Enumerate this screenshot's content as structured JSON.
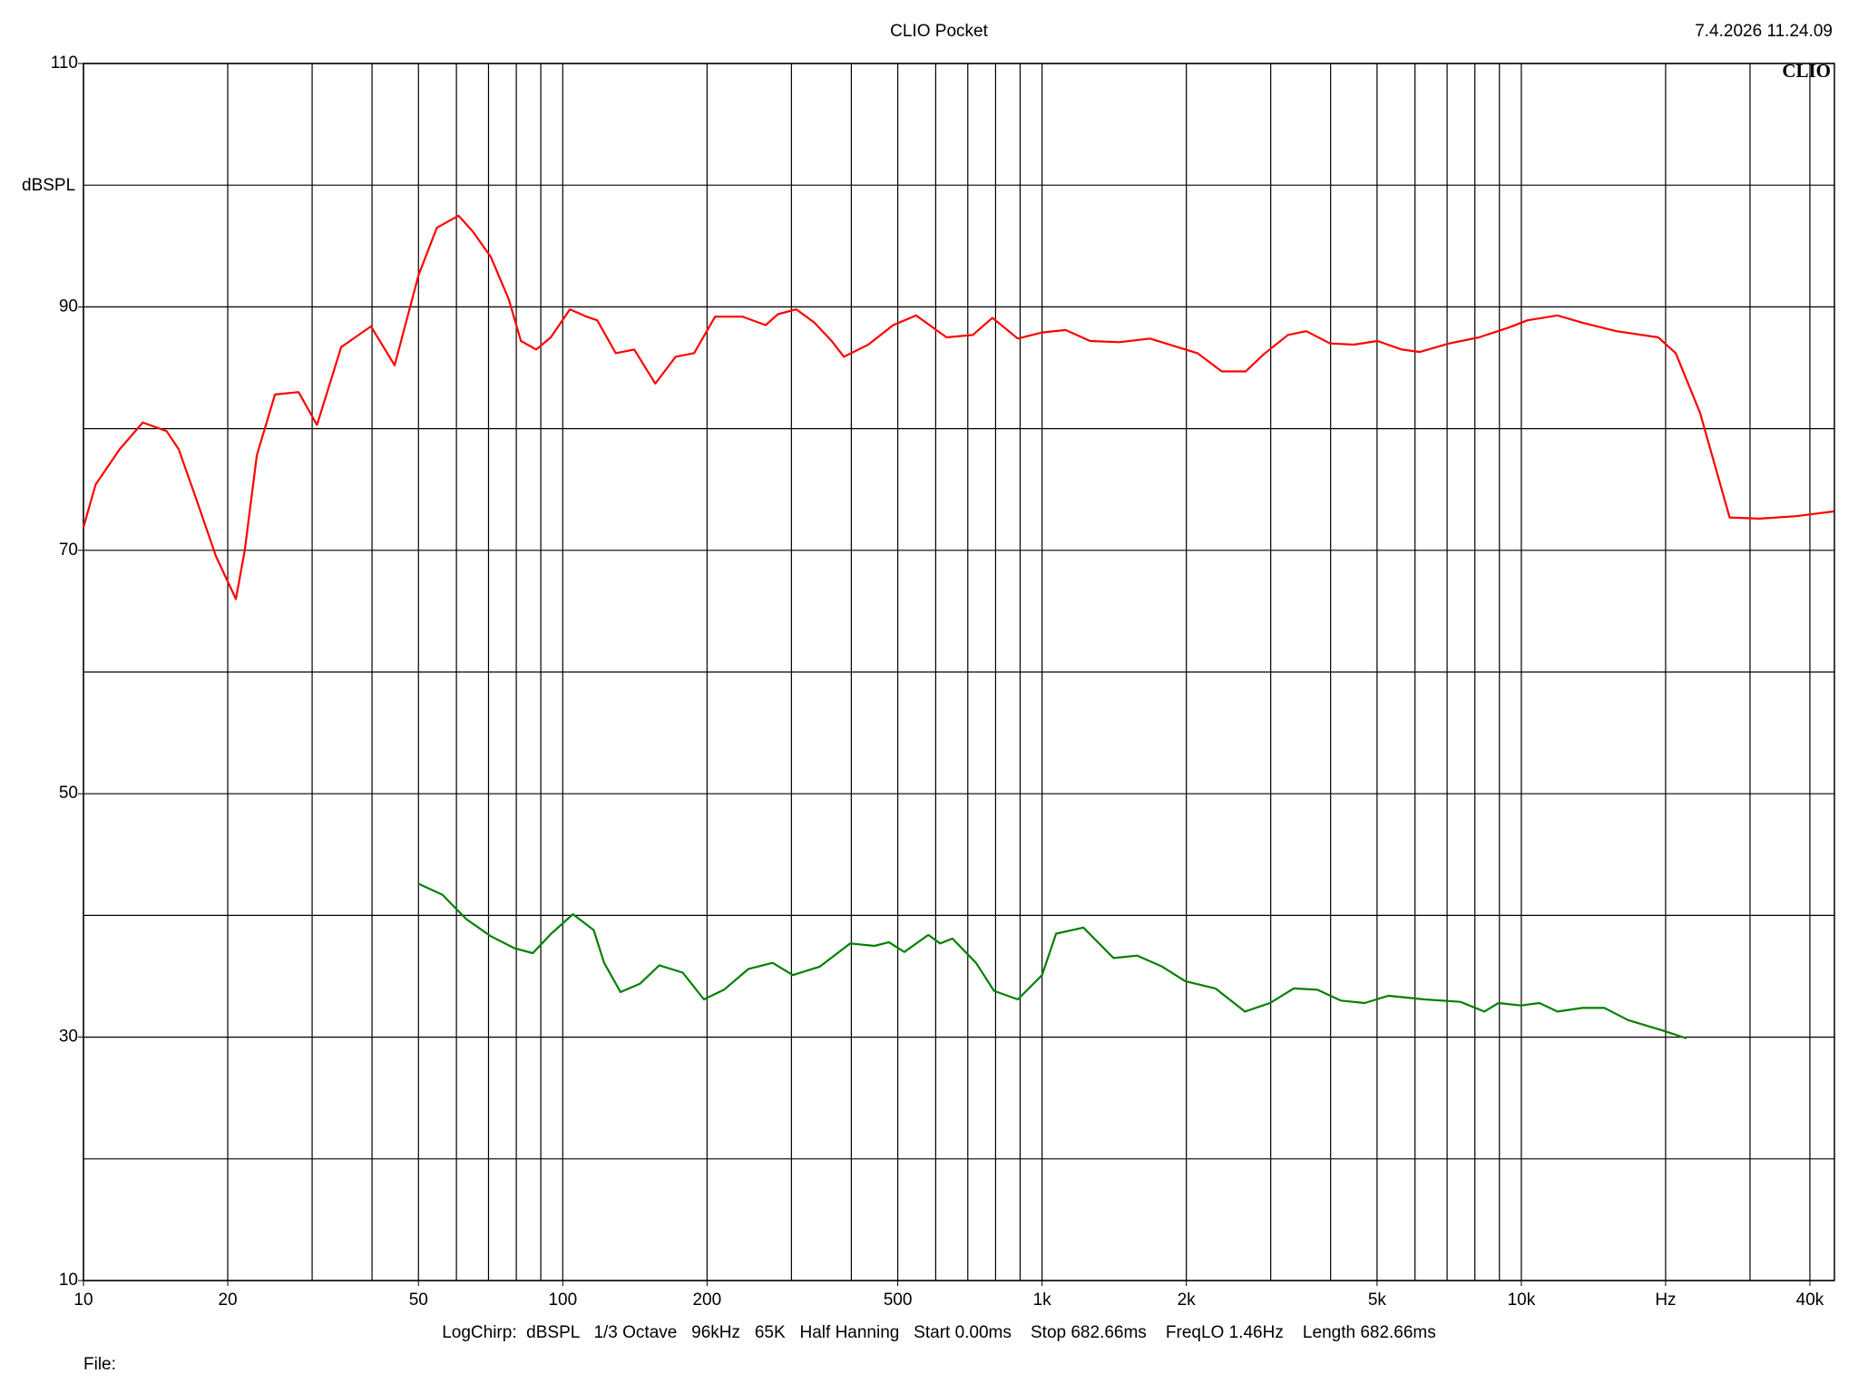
{
  "chart_data": {
    "type": "line",
    "title": "CLIO Pocket",
    "timestamp": "7.4.2026 11.24.09",
    "logo": "CLIO",
    "y_label": "dBSPL",
    "footer": "LogChirp:  dBSPL   1/3 Octave   96kHz   65K   Half Hanning   Start 0.00ms    Stop 682.66ms    FreqLO 1.46Hz    Length 682.66ms",
    "file_label": "File:",
    "x_log": true,
    "grid": true,
    "xlim": [
      10,
      45000
    ],
    "ylim": [
      10,
      110
    ],
    "xticks": [
      10,
      20,
      50,
      100,
      200,
      500,
      {
        "value": 1000,
        "label": "1k"
      },
      {
        "value": 2000,
        "label": "2k"
      },
      {
        "value": 5000,
        "label": "5k"
      },
      {
        "value": 10000,
        "label": "10k"
      },
      {
        "value": 20000,
        "label": "Hz"
      },
      {
        "value": 40000,
        "label": "40k"
      }
    ],
    "yticks": [
      10,
      30,
      50,
      70,
      90,
      110
    ],
    "x_grid": [
      10,
      20,
      30,
      40,
      50,
      60,
      70,
      80,
      90,
      100,
      200,
      300,
      400,
      500,
      600,
      700,
      800,
      900,
      1000,
      2000,
      3000,
      4000,
      5000,
      6000,
      7000,
      8000,
      9000,
      10000,
      20000,
      30000,
      40000
    ],
    "y_grid": [
      10,
      20,
      30,
      40,
      50,
      60,
      70,
      80,
      90,
      100,
      110
    ],
    "series": [
      {
        "color": "#ff0000",
        "x": [
          10,
          10.6,
          11.9,
          13.3,
          14.9,
          15.8,
          17.3,
          18.9,
          20.8,
          21.7,
          23,
          25.1,
          28.1,
          30.7,
          34.5,
          39.8,
          44.6,
          50,
          54.6,
          60.6,
          64.9,
          70.8,
          77.2,
          81.8,
          88,
          94.4,
          103.5,
          112,
          118,
          129,
          141,
          156,
          172,
          188,
          208,
          237,
          265,
          281,
          307,
          335,
          364,
          386,
          434,
          489,
          546,
          632,
          717,
          788,
          890,
          1000,
          1120,
          1260,
          1450,
          1680,
          1880,
          2110,
          2370,
          2660,
          2900,
          3260,
          3560,
          3990,
          4470,
          5010,
          5630,
          6140,
          7070,
          8160,
          9410,
          10300,
          11900,
          13400,
          15800,
          19300,
          21000,
          23600,
          27200,
          31400,
          37400,
          44900
        ],
        "values": [
          71.9,
          75.4,
          78.3,
          80.5,
          79.8,
          78.3,
          73.9,
          69.5,
          66.0,
          70.0,
          77.8,
          82.8,
          83.0,
          80.3,
          86.7,
          88.4,
          85.2,
          92.6,
          96.5,
          97.5,
          96.2,
          94.1,
          90.6,
          87.2,
          86.5,
          87.5,
          89.8,
          89.2,
          88.9,
          86.2,
          86.5,
          83.7,
          85.9,
          86.2,
          89.2,
          89.2,
          88.5,
          89.4,
          89.8,
          88.7,
          87.2,
          85.9,
          86.9,
          88.5,
          89.3,
          87.5,
          87.7,
          89.1,
          87.4,
          87.9,
          88.1,
          87.2,
          87.1,
          87.4,
          86.8,
          86.2,
          84.7,
          84.7,
          86.1,
          87.7,
          88.0,
          87.0,
          86.9,
          87.2,
          86.5,
          86.3,
          87.0,
          87.5,
          88.3,
          88.9,
          89.3,
          88.7,
          88.0,
          87.5,
          86.2,
          81.3,
          72.7,
          72.6,
          72.8,
          73.2
        ]
      },
      {
        "color": "#008000",
        "x": [
          50,
          56.1,
          62.9,
          70.7,
          79.3,
          86.6,
          94.6,
          105,
          116,
          122,
          132,
          145,
          159,
          178,
          197,
          217,
          244,
          274,
          302,
          344,
          398,
          447,
          479,
          516,
          579,
          613,
          650,
          728,
          794,
          890,
          1000,
          1070,
          1220,
          1410,
          1580,
          1780,
          1990,
          2300,
          2650,
          2990,
          3350,
          3750,
          4200,
          4710,
          5280,
          6280,
          7460,
          8370,
          8960,
          9990,
          10900,
          11900,
          13400,
          14900,
          16700,
          19900,
          22100
        ],
        "values": [
          42.6,
          41.7,
          39.7,
          38.3,
          37.3,
          36.9,
          38.5,
          40.1,
          38.8,
          36.1,
          33.7,
          34.4,
          35.9,
          35.3,
          33.1,
          33.9,
          35.6,
          36.1,
          35.1,
          35.8,
          37.7,
          37.5,
          37.8,
          37.0,
          38.4,
          37.7,
          38.1,
          36.1,
          33.8,
          33.1,
          35.1,
          38.5,
          39.0,
          36.5,
          36.7,
          35.8,
          34.6,
          34.0,
          32.1,
          32.8,
          34.0,
          33.9,
          33.0,
          32.8,
          33.4,
          33.1,
          32.9,
          32.1,
          32.8,
          32.6,
          32.8,
          32.1,
          32.4,
          32.4,
          31.4,
          30.5,
          29.9
        ]
      }
    ]
  }
}
